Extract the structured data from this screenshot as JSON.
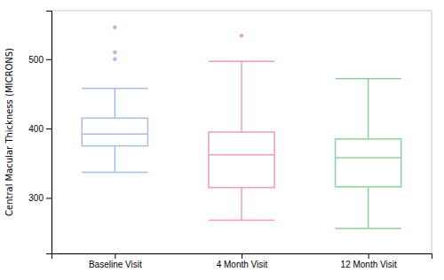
{
  "chart_data": {
    "type": "box",
    "categories": [
      "Baseline Visit",
      "4 Month Visit",
      "12 Month Visit"
    ],
    "colors": [
      "#a8bfe0",
      "#f0a0aa",
      "#90d0a0"
    ],
    "boxes": [
      {
        "q1": 375,
        "median": 392,
        "q3": 415,
        "whislo": 337,
        "whishi": 458,
        "fliers": [
          500,
          510,
          546
        ]
      },
      {
        "q1": 315,
        "median": 362,
        "q3": 395,
        "whislo": 268,
        "whishi": 497,
        "fliers": [
          534
        ]
      },
      {
        "q1": 316,
        "median": 358,
        "q3": 385,
        "whislo": 256,
        "whishi": 472,
        "fliers": []
      }
    ],
    "ylabel": "Central Macular Thickness (MICRONS)",
    "ylim": [
      220,
      570
    ],
    "yticks": [
      300,
      400,
      500
    ],
    "grid": false
  }
}
